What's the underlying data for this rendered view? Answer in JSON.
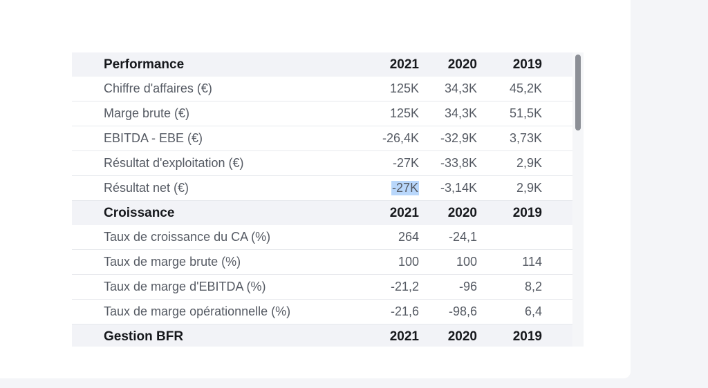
{
  "table": {
    "sections": [
      {
        "title": "Performance",
        "years": [
          "2021",
          "2020",
          "2019"
        ],
        "rows": [
          {
            "label": "Chiffre d'affaires (€)",
            "v2021": "125K",
            "v2020": "34,3K",
            "v2019": "45,2K"
          },
          {
            "label": "Marge brute (€)",
            "v2021": "125K",
            "v2020": "34,3K",
            "v2019": "51,5K"
          },
          {
            "label": "EBITDA - EBE (€)",
            "v2021": "-26,4K",
            "v2020": "-32,9K",
            "v2019": "3,73K"
          },
          {
            "label": "Résultat d'exploitation (€)",
            "v2021": "-27K",
            "v2020": "-33,8K",
            "v2019": "2,9K"
          },
          {
            "label": "Résultat net (€)",
            "v2021": "-27K",
            "v2020": "-3,14K",
            "v2019": "2,9K"
          }
        ]
      },
      {
        "title": "Croissance",
        "years": [
          "2021",
          "2020",
          "2019"
        ],
        "rows": [
          {
            "label": "Taux de croissance du CA (%)",
            "v2021": "264",
            "v2020": "-24,1",
            "v2019": ""
          },
          {
            "label": "Taux de marge brute (%)",
            "v2021": "100",
            "v2020": "100",
            "v2019": "114"
          },
          {
            "label": "Taux de marge d'EBITDA (%)",
            "v2021": "-21,2",
            "v2020": "-96",
            "v2019": "8,2"
          },
          {
            "label": "Taux de marge opérationnelle (%)",
            "v2021": "-21,6",
            "v2020": "-98,6",
            "v2019": "6,4"
          }
        ]
      },
      {
        "title": "Gestion BFR",
        "years": [
          "2021",
          "2020",
          "2019"
        ],
        "rows": []
      }
    ]
  },
  "selection_color": "#b9d7fb"
}
